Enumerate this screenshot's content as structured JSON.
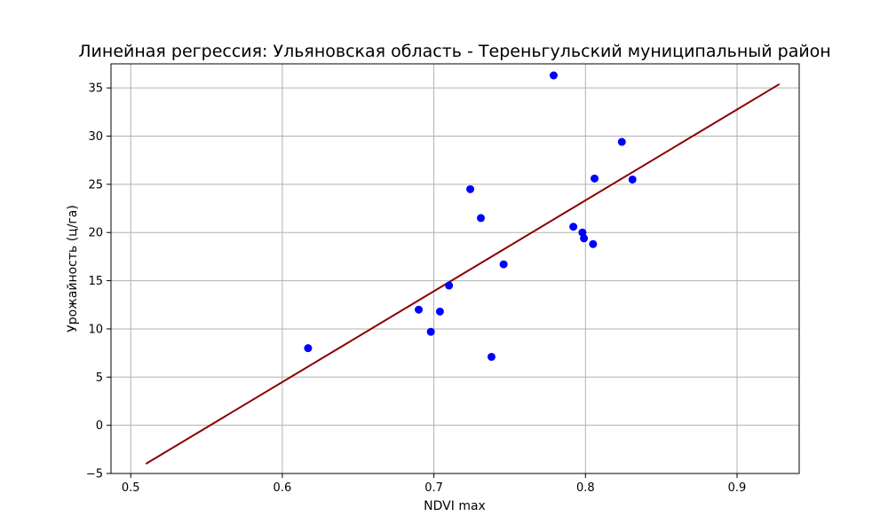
{
  "chart_data": {
    "type": "scatter",
    "title": "Линейная регрессия: Ульяновская область - Тереньгульский муниципальный район",
    "xlabel": "NDVI max",
    "ylabel": "Урожайность (ц/га)",
    "xlim": [
      0.487,
      0.941
    ],
    "ylim": [
      -5.0,
      37.5
    ],
    "x_ticks": [
      0.5,
      0.6,
      0.7,
      0.8,
      0.9
    ],
    "x_tick_labels": [
      "0.5",
      "0.6",
      "0.7",
      "0.8",
      "0.9"
    ],
    "y_ticks": [
      -5,
      0,
      5,
      10,
      15,
      20,
      25,
      30,
      35
    ],
    "y_tick_labels": [
      "−5",
      "0",
      "5",
      "10",
      "15",
      "20",
      "25",
      "30",
      "35"
    ],
    "grid": true,
    "points": [
      {
        "x": 0.617,
        "y": 8.0
      },
      {
        "x": 0.69,
        "y": 12.0
      },
      {
        "x": 0.698,
        "y": 9.7
      },
      {
        "x": 0.704,
        "y": 11.8
      },
      {
        "x": 0.71,
        "y": 14.5
      },
      {
        "x": 0.724,
        "y": 24.5
      },
      {
        "x": 0.731,
        "y": 21.5
      },
      {
        "x": 0.738,
        "y": 7.1
      },
      {
        "x": 0.746,
        "y": 16.7
      },
      {
        "x": 0.779,
        "y": 36.3
      },
      {
        "x": 0.792,
        "y": 20.6
      },
      {
        "x": 0.798,
        "y": 20.0
      },
      {
        "x": 0.799,
        "y": 19.4
      },
      {
        "x": 0.805,
        "y": 18.8
      },
      {
        "x": 0.806,
        "y": 25.6
      },
      {
        "x": 0.824,
        "y": 29.4
      },
      {
        "x": 0.831,
        "y": 25.5
      }
    ],
    "regression_line": {
      "x": [
        0.51,
        0.928
      ],
      "y": [
        -4.0,
        35.4
      ]
    },
    "colors": {
      "points": "#0000ff",
      "line": "#8b0000",
      "grid": "#b0b0b0",
      "axes": "#000000"
    }
  }
}
